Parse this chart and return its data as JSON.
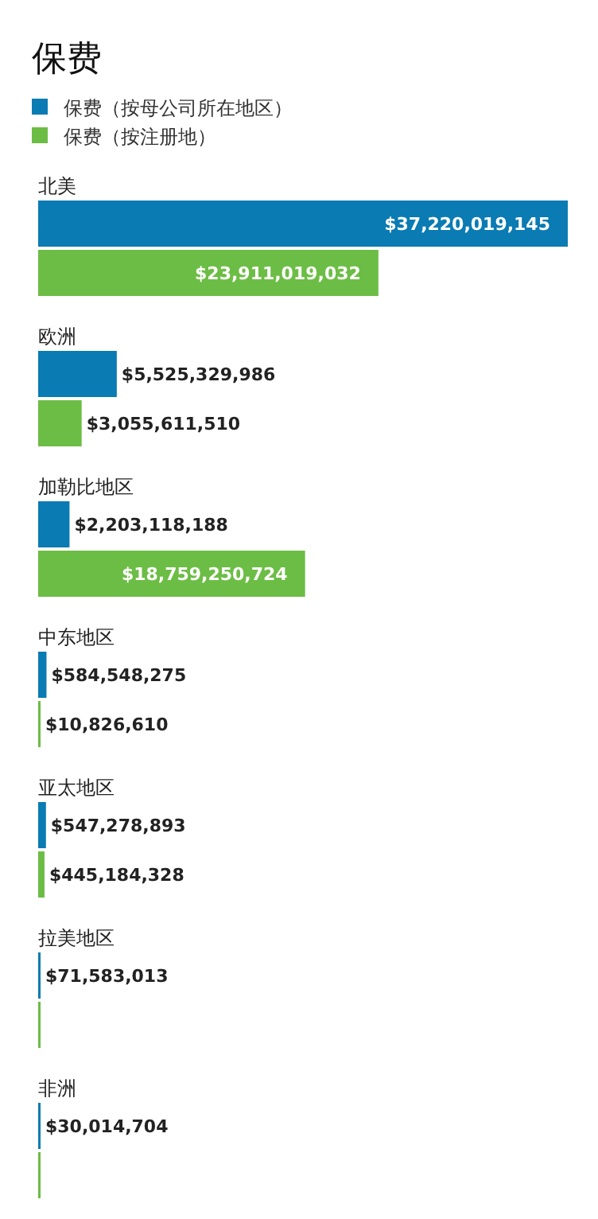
{
  "chart_data": {
    "type": "bar",
    "orientation": "horizontal",
    "title": "保费",
    "legend": "top left",
    "categories": [
      "北美",
      "欧洲",
      "加勒比地区",
      "中东地区",
      "亚太地区",
      "拉美地区",
      "非洲"
    ],
    "series": [
      {
        "name": "保费（按母公司所在地区）",
        "color": "#0a7bb3",
        "values": [
          37220019145,
          5525329986,
          2203118188,
          584548275,
          547278893,
          71583013,
          30014704
        ],
        "value_labels": [
          "$37,220,019,145",
          "$5,525,329,986",
          "$2,203,118,188",
          "$584,548,275",
          "$547,278,893",
          "$71,583,013",
          "$30,014,704"
        ]
      },
      {
        "name": "保费（按注册地）",
        "color": "#6cbd45",
        "values": [
          23911019032,
          3055611510,
          18759250724,
          10826610,
          445184328,
          0,
          0
        ],
        "value_labels": [
          "$23,911,019,032",
          "$3,055,611,510",
          "$18,759,250,724",
          "$10,826,610",
          "$445,184,328",
          null,
          null
        ]
      }
    ]
  }
}
